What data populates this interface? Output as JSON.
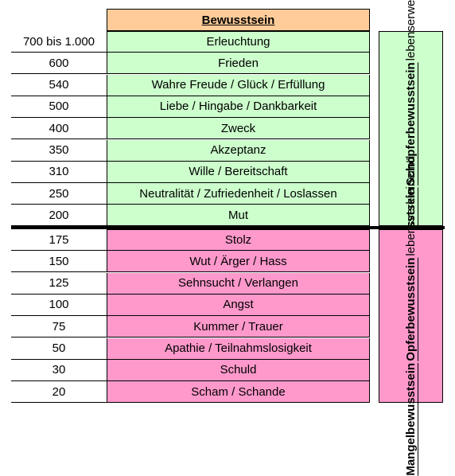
{
  "header": {
    "title": "Bewusstsein"
  },
  "colors": {
    "positive": "#ccffcc",
    "negative": "#ff99cc",
    "header": "#ffcc99"
  },
  "rows": [
    {
      "value": "700 bis 1.000",
      "label": "Erleuchtung"
    },
    {
      "value": "600",
      "label": "Frieden"
    },
    {
      "value": "540",
      "label": "Wahre Freude / Glück / Erfüllung"
    },
    {
      "value": "500",
      "label": "Liebe / Hingabe / Dankbarkeit"
    },
    {
      "value": "400",
      "label": "Zweck"
    },
    {
      "value": "350",
      "label": "Akzeptanz"
    },
    {
      "value": "310",
      "label": "Wille / Bereitschaft"
    },
    {
      "value": "250",
      "label": "Neutralität / Zufriedenheit / Loslassen"
    },
    {
      "value": "200",
      "label": "Mut"
    },
    {
      "value": "175",
      "label": "Stolz"
    },
    {
      "value": "150",
      "label": "Wut / Ärger / Hass"
    },
    {
      "value": "125",
      "label": "Sehnsucht / Verlangen"
    },
    {
      "value": "100",
      "label": "Angst"
    },
    {
      "value": "75",
      "label": "Kummer / Trauer"
    },
    {
      "value": "50",
      "label": "Apathie / Teilnahmslosigkeit"
    },
    {
      "value": "30",
      "label": "Schuld"
    },
    {
      "value": "20",
      "label": "Scham / Schande"
    }
  ],
  "side_upper": {
    "line1": "Füllebewusstsein",
    "line2": "Schöpferbewusstsein",
    "line3": "lebenserweiternd"
  },
  "side_lower": {
    "line1": "Mangelbewusstsein",
    "line2": "Opferbewusstsein",
    "line3": "lebensverkleinernd"
  }
}
